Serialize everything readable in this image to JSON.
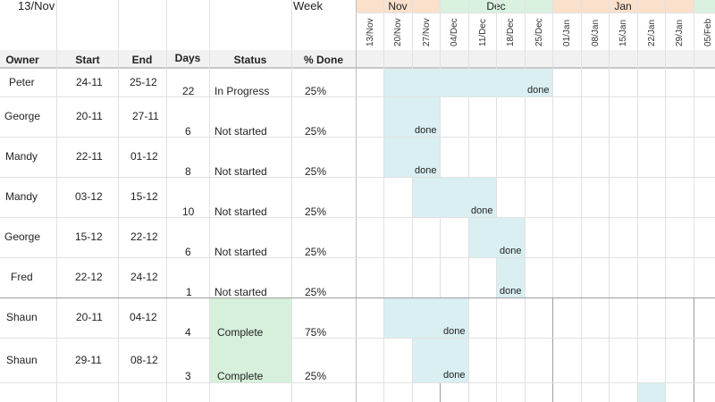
{
  "top_left_date": "13/Nov",
  "week_label": "Week",
  "months": [
    {
      "name": "Nov",
      "color": "#fbe0cc"
    },
    {
      "name": "Dec",
      "color": "#d8f2df"
    },
    {
      "name": "Jan",
      "color": "#fbe0cc"
    },
    {
      "name": "",
      "color": "#d8f2df"
    }
  ],
  "weeks": [
    "13/Nov",
    "20/Nov",
    "27/Nov",
    "04/Dec",
    "11/Dec",
    "18/Dec",
    "25/Dec",
    "01/Jan",
    "08/Jan",
    "15/Jan",
    "22/Jan",
    "29/Jan",
    "05/Feb"
  ],
  "columns": {
    "owner": "Owner",
    "start": "Start",
    "end": "End",
    "days": "Days",
    "status": "Status",
    "done": "% Done"
  },
  "rows": [
    {
      "owner": "Peter",
      "start": "24-11",
      "end": "25-12",
      "days": "22",
      "status": "In Progress",
      "done": "25%",
      "done_label": "done"
    },
    {
      "owner": "George",
      "start": "20-11",
      "end": "27-11",
      "days": "6",
      "status": "Not started",
      "done": "25%",
      "done_label": "done"
    },
    {
      "owner": "Mandy",
      "start": "22-11",
      "end": "01-12",
      "days": "8",
      "status": "Not started",
      "done": "25%",
      "done_label": "done"
    },
    {
      "owner": "Mandy",
      "start": "03-12",
      "end": "15-12",
      "days": "10",
      "status": "Not started",
      "done": "25%",
      "done_label": "done"
    },
    {
      "owner": "George",
      "start": "15-12",
      "end": "22-12",
      "days": "6",
      "status": "Not started",
      "done": "25%",
      "done_label": "done"
    },
    {
      "owner": "Fred",
      "start": "22-12",
      "end": "24-12",
      "days": "1",
      "status": "Not started",
      "done": "25%",
      "done_label": "done"
    },
    {
      "owner": "Shaun",
      "start": "20-11",
      "end": "04-12",
      "days": "4",
      "status": "Complete",
      "done": "75%",
      "done_label": "done"
    },
    {
      "owner": "Shaun",
      "start": "29-11",
      "end": "08-12",
      "days": "3",
      "status": "Complete",
      "done": "25%",
      "done_label": "done"
    }
  ],
  "colors": {
    "bar": "#d9eff2",
    "complete": "#d7f0dc"
  }
}
